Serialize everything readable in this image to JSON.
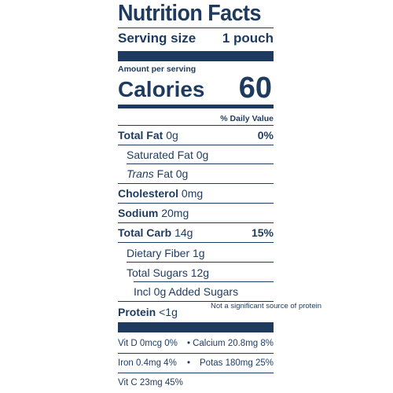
{
  "title": "Nutrition Facts",
  "serving": {
    "label": "Serving size",
    "value": "1 pouch"
  },
  "amount_per_serving": "Amount per serving",
  "calories": {
    "label": "Calories",
    "value": "60"
  },
  "daily_value_header": "% Daily Value",
  "rows": {
    "total_fat": {
      "label": "Total Fat",
      "amount": "0g",
      "pct": "0%"
    },
    "saturated_fat": {
      "label": "Saturated Fat 0g"
    },
    "trans_fat": {
      "label_italic": "Trans",
      "label_rest": "Fat 0g"
    },
    "cholesterol": {
      "label": "Cholesterol",
      "amount": "0mg"
    },
    "sodium": {
      "label": "Sodium",
      "amount": "20mg"
    },
    "total_carb": {
      "label": "Total Carb",
      "amount": "14g",
      "pct": "15%"
    },
    "dietary_fiber": {
      "label": "Dietary Fiber 1g"
    },
    "total_sugars": {
      "label": "Total Sugars 12g"
    },
    "added_sugars": {
      "label": "Incl 0g Added Sugars"
    },
    "protein": {
      "label": "Protein",
      "amount": "<1g",
      "note": "Not a significant source of protein"
    }
  },
  "footer": {
    "vit_d": "Vit D 0mcg 0%",
    "calcium": "Calcium 20.8mg 8%",
    "iron": "Iron 0.4mg 4%",
    "potas": "Potas 180mg 25%",
    "vit_c": "Vit C 23mg 45%",
    "bullet": "•"
  },
  "colors": {
    "ink": "#1e3a5f",
    "background": "#ffffff"
  }
}
